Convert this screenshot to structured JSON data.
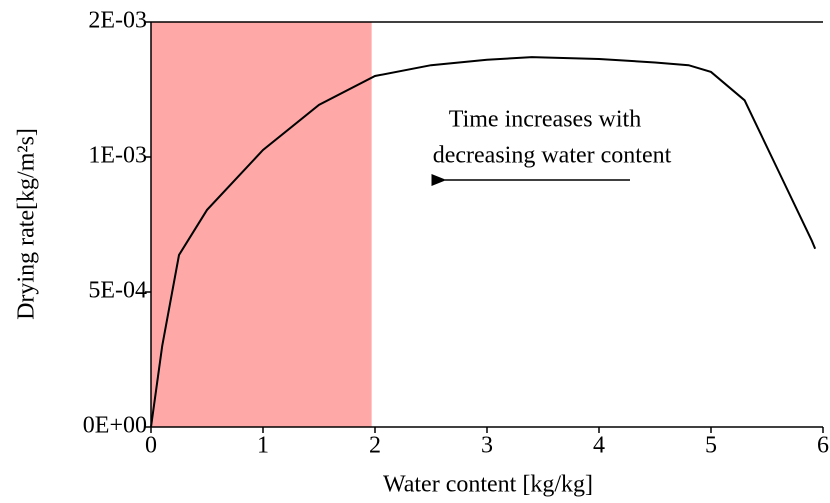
{
  "chart_data": {
    "type": "line",
    "xlabel": "Water content [kg/kg]",
    "ylabel": "Drying rate[kg/m²s]",
    "annotations": [
      "Time increases with",
      "decreasing water content"
    ],
    "shaded_region": {
      "xlim": [
        0,
        1.97
      ],
      "color": "#ffa8a8"
    },
    "series": [
      {
        "color": "#000000",
        "x": [
          0,
          0.1,
          0.25,
          0.5,
          1,
          1.5,
          2,
          2.5,
          3,
          3.4,
          4,
          4.5,
          4.8,
          5,
          5.3,
          5.6,
          5.9,
          5.93
        ],
        "values": [
          0,
          0.0003,
          0.000637,
          0.000804,
          0.001026,
          0.001193,
          0.0013,
          0.00134,
          0.00136,
          0.00137,
          0.001363,
          0.00135,
          0.00134,
          0.001315,
          0.00121,
          0.00095,
          0.00069,
          0.00066
        ]
      }
    ],
    "xlim": [
      0,
      6
    ],
    "xticks": [
      0,
      1,
      2,
      3,
      4,
      5,
      6
    ],
    "ylim": [
      0,
      0.0015
    ],
    "yticks": [
      {
        "value": 0,
        "label": "0E+00"
      },
      {
        "value": 0.0005,
        "label": "5E-04"
      },
      {
        "value": 0.001,
        "label": "1E-03"
      },
      {
        "value": 0.0015,
        "label": "2E-03"
      }
    ]
  }
}
